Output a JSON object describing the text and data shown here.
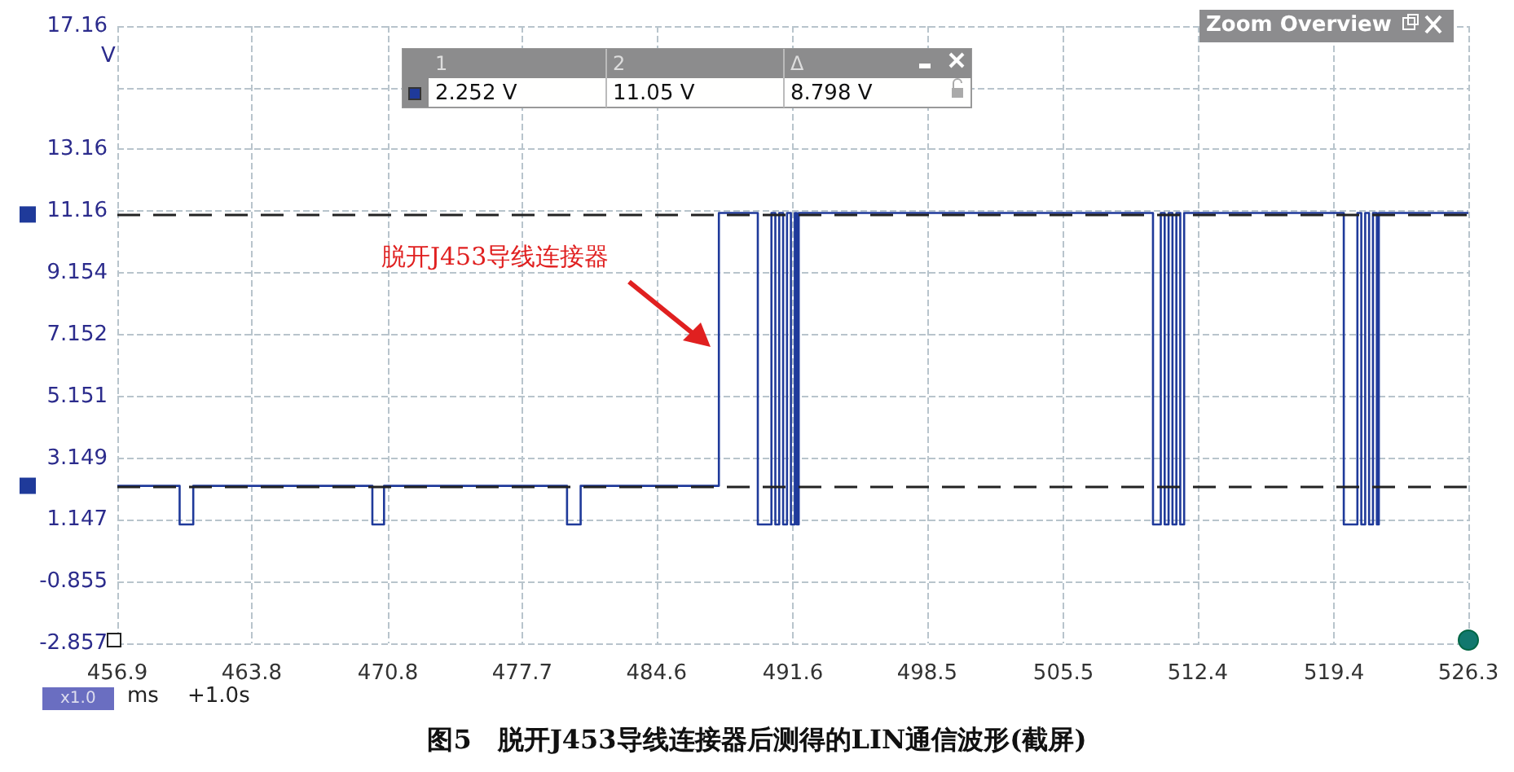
{
  "chart_data": {
    "type": "step",
    "title": "图5　脱开J453导线连接器后测得的LIN通信波形(截屏)",
    "xlabel": "ms",
    "ylabel": "V",
    "x": [
      456.9,
      460.1,
      460.8,
      470.0,
      470.6,
      480.0,
      480.7,
      487.8,
      489.8,
      490.5,
      490.7,
      490.9,
      491.1,
      491.3,
      491.5,
      491.7,
      491.8,
      491.9,
      510.1,
      510.5,
      510.7,
      510.9,
      511.1,
      511.3,
      511.5,
      511.7,
      519.9,
      520.6,
      520.8,
      521.0,
      521.2,
      521.4,
      521.6,
      521.7,
      526.3
    ],
    "series": [
      {
        "color": "#1f3a9a",
        "values": [
          2.25,
          1.0,
          2.25,
          1.0,
          2.25,
          1.0,
          2.25,
          11.1,
          1.0,
          11.1,
          1.0,
          11.1,
          1.0,
          11.1,
          1.0,
          11.1,
          1.0,
          11.1,
          1.0,
          11.1,
          1.0,
          11.1,
          1.0,
          11.1,
          1.0,
          11.1,
          1.0,
          11.1,
          1.0,
          11.1,
          1.0,
          11.1,
          1.0,
          11.1,
          11.1
        ]
      }
    ],
    "xlim": [
      456.9,
      526.3
    ],
    "xticks": [
      456.9,
      463.8,
      470.8,
      477.7,
      484.6,
      491.6,
      498.5,
      505.5,
      512.4,
      519.4,
      526.3
    ],
    "ylim": [
      -2.857,
      17.16
    ],
    "yticks": [
      -2.857,
      -0.855,
      1.147,
      3.149,
      5.151,
      7.152,
      9.154,
      11.16,
      13.16,
      {
        "value": 15.16,
        "label": null
      },
      17.16
    ],
    "ref_lines": [
      {
        "axis": "y",
        "value": 2.252,
        "color": "#222222",
        "line_style": "dashed"
      },
      {
        "axis": "y",
        "value": 11.05,
        "color": "#222222",
        "line_style": "dashed"
      }
    ],
    "annotations": [
      "脱开J453导线连接器",
      "1",
      "2",
      "Δ",
      "2.252 V",
      "11.05 V",
      "8.798 V",
      "Zoom Overview",
      "x1.0",
      "+1.0s"
    ],
    "grid": true,
    "marker": "none",
    "line_style": "solid"
  }
}
